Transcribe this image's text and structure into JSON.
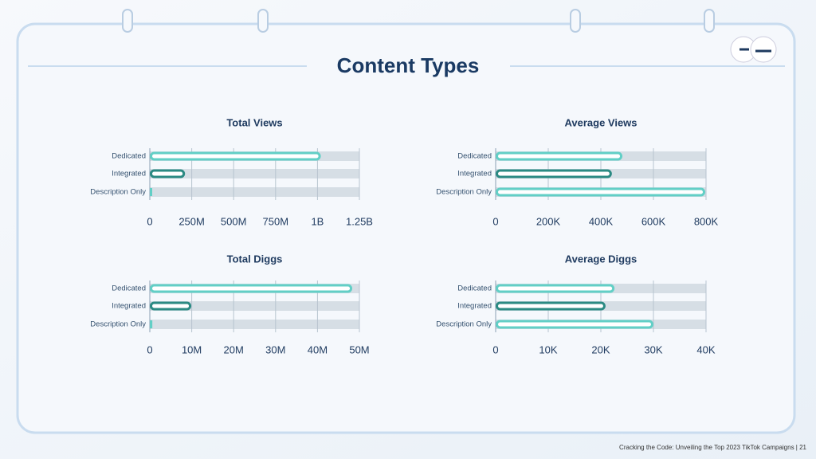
{
  "title": "Content Types",
  "footer": "Cracking the Code: Unveiling the Top 2023 TikTok Campaigns | 21",
  "chart_data": [
    {
      "type": "bar",
      "orientation": "horizontal",
      "title": "Total Views",
      "categories": [
        "Dedicated",
        "Integrated",
        "Description Only"
      ],
      "values": [
        1020000000,
        210000000,
        10000000
      ],
      "colors": [
        "#62cfc6",
        "#2b8a83",
        "#62cfc6"
      ],
      "xlim": [
        0,
        1250000000
      ],
      "xticks": [
        0,
        {
          "value": 250000000,
          "label": "250M"
        },
        {
          "value": 500000000,
          "label": "500M"
        },
        {
          "value": 750000000,
          "label": "750M"
        },
        {
          "value": 1000000000,
          "label": "1B"
        },
        {
          "value": 1250000000,
          "label": "1.25B"
        }
      ],
      "grid": true
    },
    {
      "type": "bar",
      "orientation": "horizontal",
      "title": "Average Views",
      "categories": [
        "Dedicated",
        "Integrated",
        "Description Only"
      ],
      "values": [
        482000,
        442000,
        797000
      ],
      "colors": [
        "#62cfc6",
        "#2b8a83",
        "#62cfc6"
      ],
      "xlim": [
        0,
        800000
      ],
      "xticks": [
        0,
        {
          "value": 200000,
          "label": "200K"
        },
        {
          "value": 400000,
          "label": "400K"
        },
        {
          "value": 600000,
          "label": "600K"
        },
        {
          "value": 800000,
          "label": "800K"
        }
      ],
      "grid": true
    },
    {
      "type": "bar",
      "orientation": "horizontal",
      "title": "Total Diggs",
      "categories": [
        "Dedicated",
        "Integrated",
        "Description Only"
      ],
      "values": [
        48300000,
        9900000,
        600000
      ],
      "colors": [
        "#62cfc6",
        "#2b8a83",
        "#62cfc6"
      ],
      "xlim": [
        0,
        50000000
      ],
      "xticks": [
        0,
        {
          "value": 10000000,
          "label": "10M"
        },
        {
          "value": 20000000,
          "label": "20M"
        },
        {
          "value": 30000000,
          "label": "30M"
        },
        {
          "value": 40000000,
          "label": "40M"
        },
        {
          "value": 50000000,
          "label": "50M"
        }
      ],
      "grid": true
    },
    {
      "type": "bar",
      "orientation": "horizontal",
      "title": "Average Diggs",
      "categories": [
        "Dedicated",
        "Integrated",
        "Description Only"
      ],
      "values": [
        22600,
        20900,
        30000
      ],
      "colors": [
        "#62cfc6",
        "#2b8a83",
        "#62cfc6"
      ],
      "xlim": [
        0,
        40000
      ],
      "xticks": [
        0,
        {
          "value": 10000,
          "label": "10K"
        },
        {
          "value": 20000,
          "label": "20K"
        },
        {
          "value": 30000,
          "label": "30K"
        },
        {
          "value": 40000,
          "label": "40K"
        }
      ],
      "grid": true
    }
  ]
}
